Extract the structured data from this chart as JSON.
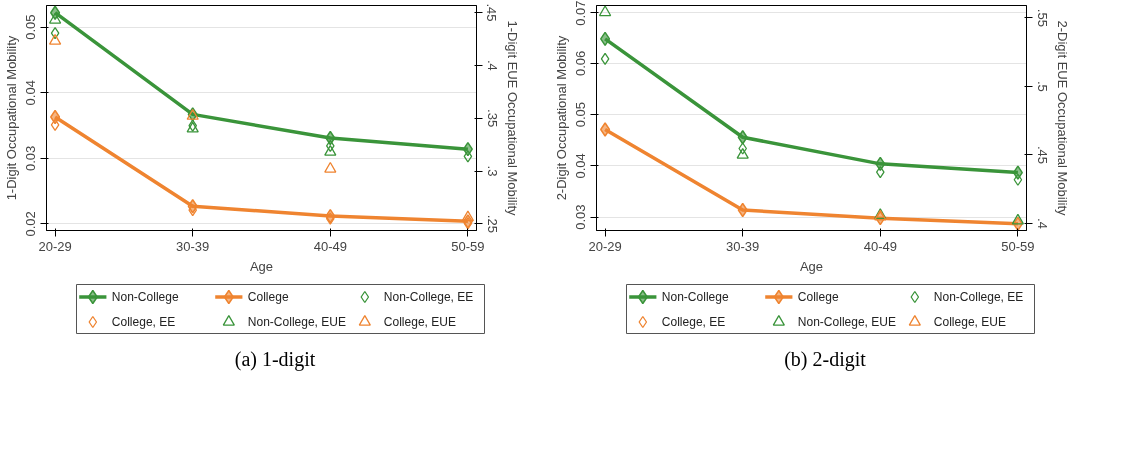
{
  "chart_data": [
    {
      "type": "line",
      "title": "(a)  1-digit",
      "xlabel": "Age",
      "ylabel": "1-Digit Occupational Mobility",
      "y2label": "1-Digit EUE Occupational Mobility",
      "categories": [
        "20-29",
        "30-39",
        "40-49",
        "50-59"
      ],
      "ylim": [
        0.019,
        0.0533
      ],
      "yticks": [
        {
          "value": 0.02,
          "label": "0.02"
        },
        {
          "value": 0.03,
          "label": "0.03"
        },
        {
          "value": 0.04,
          "label": "0.04"
        },
        {
          "value": 0.05,
          "label": "0.05"
        }
      ],
      "y2lim": [
        0.2437,
        0.4566
      ],
      "y2ticks": [
        {
          "value": 0.25,
          "label": ".25"
        },
        {
          "value": 0.3,
          "label": ".3"
        },
        {
          "value": 0.35,
          "label": ".35"
        },
        {
          "value": 0.4,
          "label": ".4"
        },
        {
          "value": 0.45,
          "label": ".45"
        }
      ],
      "grid": "y",
      "legend": "bottom",
      "series": [
        {
          "name": "Non-College",
          "type": "line",
          "marker": "diamond",
          "color": "#3a943a",
          "values": [
            0.0522,
            0.0367,
            0.0331,
            0.0314
          ]
        },
        {
          "name": "College",
          "type": "line",
          "marker": "diamond",
          "color": "#ef8430",
          "values": [
            0.0363,
            0.0227,
            0.0212,
            0.0204
          ]
        },
        {
          "name": "Non-College, EE",
          "type": "scatter",
          "marker": "diamond",
          "color": "#3a943a",
          "values": [
            0.0491,
            0.035,
            0.0319,
            0.0303
          ]
        },
        {
          "name": "College, EE",
          "type": "scatter",
          "marker": "diamond",
          "color": "#ef8430",
          "values": [
            0.0351,
            0.0221,
            0.0208,
            0.0201
          ]
        },
        {
          "name": "Non-College, EUE",
          "type": "scatter",
          "marker": "triangle",
          "axis": "y2",
          "color": "#3a943a",
          "values": [
            0.443,
            0.34,
            0.318,
            null
          ]
        },
        {
          "name": "College, EUE",
          "type": "scatter",
          "marker": "triangle",
          "axis": "y2",
          "color": "#ef8430",
          "values": [
            0.423,
            0.352,
            0.302,
            0.256
          ]
        }
      ]
    },
    {
      "type": "line",
      "title": "(b)  2-digit",
      "xlabel": "Age",
      "ylabel": "2-Digit Occupational Mobility",
      "y2label": "2-Digit EUE Occupational Mobility",
      "categories": [
        "20-29",
        "30-39",
        "40-49",
        "50-59"
      ],
      "ylim": [
        0.0274,
        0.0713
      ],
      "yticks": [
        {
          "value": 0.03,
          "label": "0.03"
        },
        {
          "value": 0.04,
          "label": "0.04"
        },
        {
          "value": 0.05,
          "label": "0.05"
        },
        {
          "value": 0.06,
          "label": "0.06"
        },
        {
          "value": 0.07,
          "label": "0.07"
        }
      ],
      "y2lim": [
        0.3949,
        0.559
      ],
      "y2ticks": [
        {
          "value": 0.4,
          "label": ".4"
        },
        {
          "value": 0.45,
          "label": ".45"
        },
        {
          "value": 0.5,
          "label": ".5"
        },
        {
          "value": 0.55,
          "label": ".55"
        }
      ],
      "grid": "y",
      "legend": "bottom",
      "series": [
        {
          "name": "Non-College",
          "type": "line",
          "marker": "diamond",
          "color": "#3a943a",
          "values": [
            0.0648,
            0.0456,
            0.0404,
            0.0387
          ]
        },
        {
          "name": "College",
          "type": "line",
          "marker": "diamond",
          "color": "#ef8430",
          "values": [
            0.0471,
            0.0314,
            0.0298,
            0.0287
          ]
        },
        {
          "name": "Non-College, EE",
          "type": "scatter",
          "marker": "diamond",
          "color": "#3a943a",
          "values": [
            0.0609,
            0.0434,
            0.0388,
            0.0373
          ]
        },
        {
          "name": "College, EE",
          "type": "scatter",
          "marker": "diamond",
          "color": "#ef8430",
          "values": [
            null,
            null,
            null,
            null
          ]
        },
        {
          "name": "Non-College, EUE",
          "type": "scatter",
          "marker": "triangle",
          "axis": "y2",
          "color": "#3a943a",
          "values": [
            0.554,
            0.45,
            0.406,
            0.402
          ]
        },
        {
          "name": "College, EUE",
          "type": "scatter",
          "marker": "triangle",
          "axis": "y2",
          "color": "#ef8430",
          "values": [
            null,
            null,
            0.405,
            null
          ]
        }
      ]
    }
  ]
}
